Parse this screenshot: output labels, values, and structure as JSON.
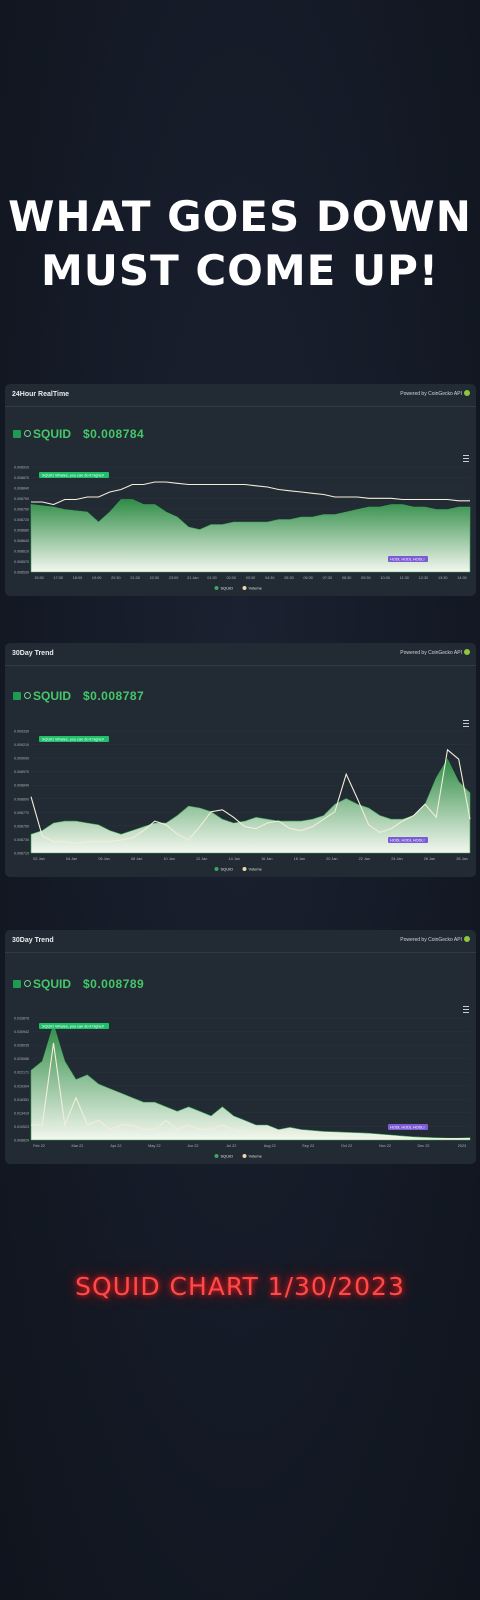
{
  "headline": {
    "line1": "WHAT GOES DOWN",
    "line2": "MUST COME UP!"
  },
  "footer": "SQUID CHART 1/30/2023",
  "colors": {
    "accent_green": "#45c86a",
    "line_white": "#f3eed8",
    "badge_green": "#1fc06a",
    "badge_purple": "#7b5bd6",
    "footer_red": "#ff4a4a"
  },
  "chart_data": [
    {
      "type": "area",
      "card_title": "24Hour RealTime",
      "powered_by": "Powered by CoinGecko API",
      "ticker": "SQUID",
      "price": "$0.008784",
      "annotation_high": "SQUID Whales, you can do it higher!",
      "annotation_low": "HODL HODL HODL!",
      "legend": [
        "SQUID",
        "Volume"
      ],
      "ylim": [
        0.0085,
        0.00892
      ],
      "yticks": [
        "0.008910",
        "0.008870",
        "0.008840",
        "0.008790",
        "0.008750",
        "0.008720",
        "0.008680",
        "0.008640",
        "0.008610",
        "0.008570",
        "0.008530"
      ],
      "xticks": [
        "15:30",
        "17:30",
        "18:00",
        "19:00",
        "20:30",
        "21:30",
        "22:30",
        "23:00",
        "21 Jan",
        "01:30",
        "02:00",
        "03:30",
        "04:30",
        "05:30",
        "06:30",
        "07:30",
        "08:30",
        "09:30",
        "10:30",
        "11:30",
        "12:30",
        "13:30",
        "14:30"
      ],
      "price_series": [
        0.00877,
        0.008765,
        0.00876,
        0.00875,
        0.008745,
        0.00874,
        0.0087,
        0.00874,
        0.00879,
        0.00879,
        0.00877,
        0.00877,
        0.00874,
        0.00872,
        0.00868,
        0.00867,
        0.00869,
        0.00869,
        0.0087,
        0.0087,
        0.0087,
        0.0087,
        0.00871,
        0.00871,
        0.00872,
        0.00872,
        0.00873,
        0.00873,
        0.00874,
        0.00875,
        0.00876,
        0.00876,
        0.00877,
        0.00877,
        0.00876,
        0.00876,
        0.00875,
        0.00875,
        0.00876,
        0.00876
      ],
      "volume_series": [
        0.00878,
        0.00878,
        0.00877,
        0.00879,
        0.00879,
        0.0088,
        0.0088,
        0.00882,
        0.00883,
        0.00885,
        0.00885,
        0.00886,
        0.00886,
        0.008855,
        0.00885,
        0.00885,
        0.00885,
        0.00885,
        0.00885,
        0.00885,
        0.008845,
        0.00884,
        0.00883,
        0.008825,
        0.00882,
        0.008815,
        0.00881,
        0.0088,
        0.0088,
        0.0088,
        0.008795,
        0.008795,
        0.008795,
        0.00879,
        0.00879,
        0.00879,
        0.00879,
        0.00879,
        0.008785,
        0.008785
      ]
    },
    {
      "type": "area",
      "card_title": "30Day Trend",
      "powered_by": "Powered by CoinGecko API",
      "ticker": "SQUID",
      "price": "$0.008787",
      "annotation_high": "SQUID Whales, you can do it higher!",
      "annotation_low": "HODL HODL HODL!",
      "legend": [
        "SQUID",
        "Volume"
      ],
      "ylim": [
        0.0087,
        0.00935
      ],
      "yticks": [
        "0.009330",
        "0.009210",
        "0.009090",
        "0.008970",
        "0.008840",
        "0.008800",
        "0.008770",
        "0.008750",
        "0.008730",
        "0.008710"
      ],
      "xticks": [
        "02 Jan",
        "04 Jan",
        "06 Jan",
        "08 Jan",
        "10 Jan",
        "12 Jan",
        "14 Jan",
        "16 Jan",
        "18 Jan",
        "20 Jan",
        "22 Jan",
        "24 Jan",
        "26 Jan",
        "28 Jan"
      ],
      "price_series": [
        0.0088,
        0.00882,
        0.00886,
        0.00887,
        0.00887,
        0.00886,
        0.00885,
        0.00882,
        0.0088,
        0.00882,
        0.00884,
        0.00886,
        0.00886,
        0.0089,
        0.00895,
        0.00894,
        0.00892,
        0.00888,
        0.00886,
        0.00887,
        0.00889,
        0.00888,
        0.00887,
        0.00887,
        0.00887,
        0.00888,
        0.0089,
        0.00896,
        0.00899,
        0.00896,
        0.00894,
        0.0089,
        0.00888,
        0.00888,
        0.0089,
        0.00896,
        0.0091,
        0.0092,
        0.00908,
        0.00902
      ],
      "volume_series": [
        0.009,
        0.00879,
        0.00876,
        0.00876,
        0.00875,
        0.00876,
        0.00876,
        0.00876,
        0.00877,
        0.00878,
        0.00882,
        0.00887,
        0.00885,
        0.0088,
        0.00877,
        0.00884,
        0.00892,
        0.00893,
        0.00889,
        0.00884,
        0.00883,
        0.00886,
        0.00887,
        0.00883,
        0.00882,
        0.00884,
        0.00888,
        0.00892,
        0.00912,
        0.00899,
        0.00885,
        0.00881,
        0.00883,
        0.00887,
        0.0089,
        0.00896,
        0.00889,
        0.00925,
        0.0092,
        0.00888
      ]
    },
    {
      "type": "area",
      "card_title": "30Day Trend",
      "powered_by": "Powered by CoinGecko API",
      "ticker": "SQUID",
      "price": "$0.008789",
      "annotation_high": "SQUID Whales, you can do it higher!",
      "annotation_low": "HODL HODL HODL!",
      "legend": [
        "SQUID",
        "Volume"
      ],
      "ylim": [
        0.0087,
        0.0355
      ],
      "yticks": [
        "0.033878",
        "0.030942",
        "0.028035",
        "0.025086",
        "0.022171",
        "0.019304",
        "0.016351",
        "0.013410",
        "0.010523",
        "0.008829"
      ],
      "xticks": [
        "Feb 22",
        "Mar 22",
        "Apr 22",
        "May 22",
        "Jun 22",
        "Jul 22",
        "Aug 22",
        "Sep 22",
        "Oct 22",
        "Nov 22",
        "Dec 22",
        "2023"
      ],
      "price_series": [
        0.024,
        0.026,
        0.034,
        0.026,
        0.022,
        0.023,
        0.021,
        0.02,
        0.019,
        0.018,
        0.017,
        0.017,
        0.016,
        0.015,
        0.016,
        0.015,
        0.014,
        0.016,
        0.014,
        0.013,
        0.012,
        0.012,
        0.011,
        0.0115,
        0.011,
        0.0108,
        0.0106,
        0.0105,
        0.0104,
        0.0103,
        0.0102,
        0.01,
        0.0098,
        0.0096,
        0.0094,
        0.0093,
        0.0092,
        0.0091,
        0.0091,
        0.0092
      ],
      "volume_series": [
        0.012,
        0.012,
        0.03,
        0.012,
        0.018,
        0.012,
        0.013,
        0.011,
        0.012,
        0.012,
        0.011,
        0.011,
        0.013,
        0.011,
        0.012,
        0.011,
        0.011,
        0.012,
        0.011,
        0.0105,
        0.0105,
        0.0102,
        0.0102,
        0.01,
        0.01,
        0.0099,
        0.0098,
        0.0097,
        0.0096,
        0.0095,
        0.0094,
        0.0093,
        0.0092,
        0.0091,
        0.0091,
        0.009,
        0.009,
        0.009,
        0.009,
        0.009
      ]
    }
  ]
}
